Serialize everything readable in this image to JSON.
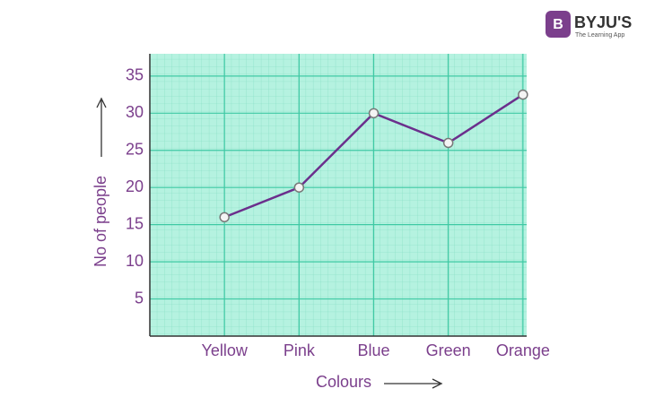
{
  "chart_data": {
    "type": "line",
    "brand": "BYJU'S",
    "tagline": "The Learning App",
    "x_label": "Colours",
    "y_label": "No of people",
    "categories": [
      "Yellow",
      "Pink",
      "Blue",
      "Green",
      "Orange"
    ],
    "values": [
      16,
      20,
      30,
      26,
      32.5
    ],
    "color": "#6b2f8c",
    "ylim": [
      0,
      38
    ],
    "yticks": [
      5,
      10,
      15,
      20,
      25,
      30,
      35
    ],
    "grid": true
  }
}
